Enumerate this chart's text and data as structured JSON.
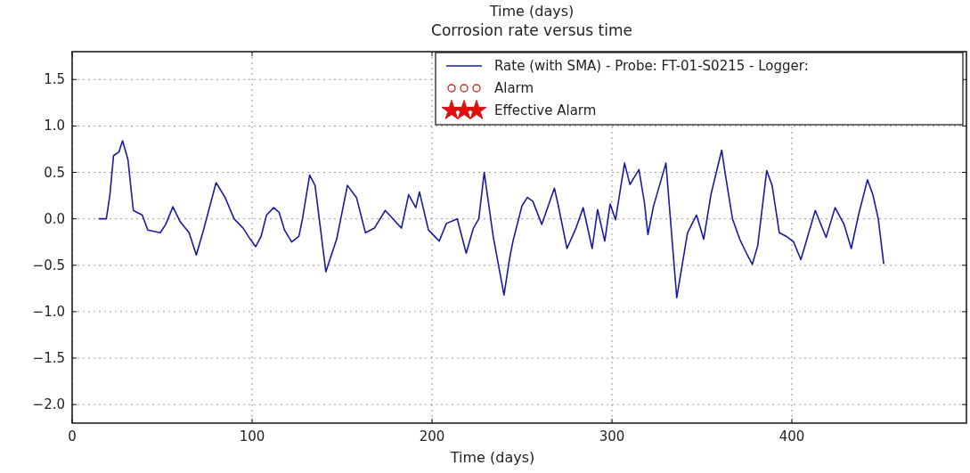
{
  "chart_data": {
    "type": "line",
    "title": "Corrosion rate versus time",
    "xlabel": "Time (days)",
    "annotations": [
      "Time (days)"
    ],
    "xlim": [
      0,
      497
    ],
    "ylim": [
      -2.2,
      1.8
    ],
    "xticks": [
      0,
      100,
      200,
      300,
      400
    ],
    "yticks": [
      {
        "value": -2,
        "label": "−2.0"
      },
      -1.5,
      {
        "value": -1,
        "label": "−1.0"
      },
      -0.5,
      {
        "value": 0,
        "label": "0.0"
      },
      0.5,
      {
        "value": 1,
        "label": "1.0"
      },
      1.5
    ],
    "grid": true,
    "legend": "top right",
    "line_style": "solid",
    "marker": "none",
    "series": [
      {
        "name": "Rate (with SMA) - Probe: FT-01-S0215 - Logger:",
        "color": "#1a1aa0",
        "x": [
          15,
          19,
          21,
          23,
          26,
          28,
          31,
          34,
          39,
          42,
          49,
          52,
          56,
          60,
          65,
          69,
          73,
          80,
          85,
          90,
          95,
          99,
          102,
          105,
          108,
          112,
          115,
          118,
          122,
          126,
          128,
          132,
          135,
          141,
          147,
          153,
          158,
          163,
          168,
          174,
          183,
          187,
          191,
          193,
          198,
          204,
          208,
          214,
          219,
          223,
          226,
          229,
          234,
          240,
          243,
          245,
          250,
          253,
          256,
          261,
          268,
          270,
          275,
          280,
          284,
          289,
          292,
          296,
          299,
          302,
          307,
          310,
          315,
          318,
          320,
          323,
          330,
          336,
          342,
          347,
          351,
          355,
          361,
          363,
          367,
          371,
          375,
          378,
          381,
          386,
          389,
          393,
          397,
          401,
          405,
          413,
          419,
          424,
          429,
          433,
          437,
          442,
          445,
          448,
          451
        ],
        "values": [
          0.0,
          0.0,
          0.26,
          0.68,
          0.72,
          0.84,
          0.64,
          0.09,
          0.04,
          -0.12,
          -0.15,
          -0.06,
          0.13,
          -0.03,
          -0.15,
          -0.39,
          -0.12,
          0.39,
          0.23,
          0.0,
          -0.1,
          -0.22,
          -0.3,
          -0.19,
          0.04,
          0.12,
          0.07,
          -0.12,
          -0.25,
          -0.19,
          0.0,
          0.47,
          0.36,
          -0.57,
          -0.22,
          0.36,
          0.23,
          -0.15,
          -0.1,
          0.09,
          -0.1,
          0.26,
          0.12,
          0.29,
          -0.12,
          -0.24,
          -0.05,
          0.0,
          -0.37,
          -0.1,
          0.0,
          0.5,
          -0.19,
          -0.82,
          -0.44,
          -0.24,
          0.14,
          0.23,
          0.19,
          -0.06,
          0.33,
          0.16,
          -0.32,
          -0.1,
          0.12,
          -0.32,
          0.1,
          -0.24,
          0.16,
          -0.01,
          0.6,
          0.37,
          0.53,
          0.18,
          -0.17,
          0.13,
          0.6,
          -0.85,
          -0.15,
          0.04,
          -0.22,
          0.26,
          0.74,
          0.48,
          0.0,
          -0.22,
          -0.38,
          -0.49,
          -0.29,
          0.52,
          0.36,
          -0.15,
          -0.19,
          -0.25,
          -0.44,
          0.09,
          -0.2,
          0.12,
          -0.06,
          -0.32,
          0.04,
          0.42,
          0.26,
          0.0,
          -0.48
        ]
      },
      {
        "name": "Alarm",
        "type": "scatter",
        "marker": "circle",
        "color": "#cc2222"
      },
      {
        "name": "Effective Alarm",
        "type": "scatter",
        "marker": "star",
        "color": "#dd1111"
      }
    ]
  }
}
